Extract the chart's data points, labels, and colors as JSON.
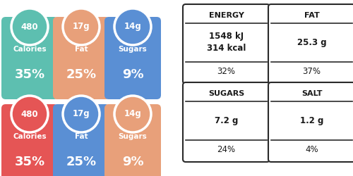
{
  "background_color": "#ffffff",
  "top_badges": [
    {
      "value": "480",
      "label": "Calories",
      "percent": "35%",
      "color": "#5dbfb0"
    },
    {
      "value": "17g",
      "label": "Fat",
      "percent": "25%",
      "color": "#e8a07a"
    },
    {
      "value": "14g",
      "label": "Sugars",
      "percent": "9%",
      "color": "#5a8fd4"
    }
  ],
  "bottom_badges": [
    {
      "value": "480",
      "label": "Calories",
      "percent": "35%",
      "color": "#e55555"
    },
    {
      "value": "17g",
      "label": "Fat",
      "percent": "25%",
      "color": "#5a8fd4"
    },
    {
      "value": "14g",
      "label": "Sugars",
      "percent": "9%",
      "color": "#e8a07a"
    }
  ],
  "nutrition_tables": [
    {
      "title": "ENERGY",
      "value": "1548 kJ\n314 kcal",
      "percent": "32%"
    },
    {
      "title": "FAT",
      "value": "25.3 g",
      "percent": "37%"
    },
    {
      "title": "SUGARS",
      "value": "7.2 g",
      "percent": "24%"
    },
    {
      "title": "SALT",
      "value": "1.2 g",
      "percent": "4%"
    }
  ],
  "border_color": "#2a2a2a",
  "table_text_color": "#1a1a1a"
}
